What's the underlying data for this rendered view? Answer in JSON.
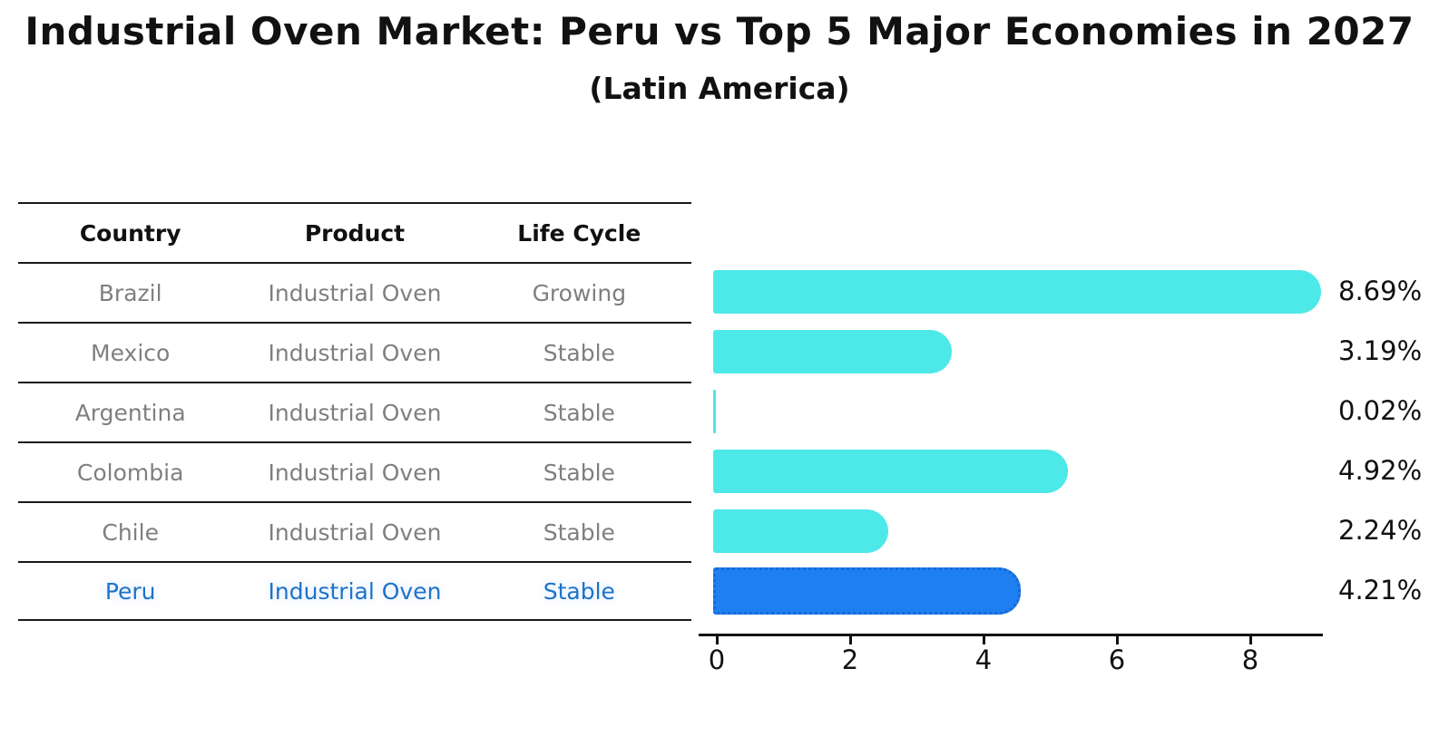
{
  "title": "Industrial Oven Market: Peru vs Top 5 Major Economies in 2027",
  "subtitle": "(Latin America)",
  "table": {
    "headers": [
      "Country",
      "Product",
      "Life Cycle"
    ],
    "rows": [
      {
        "country": "Brazil",
        "product": "Industrial Oven",
        "life_cycle": "Growing",
        "highlighted": false
      },
      {
        "country": "Mexico",
        "product": "Industrial Oven",
        "life_cycle": "Stable",
        "highlighted": false
      },
      {
        "country": "Argentina",
        "product": "Industrial Oven",
        "life_cycle": "Stable",
        "highlighted": false
      },
      {
        "country": "Colombia",
        "product": "Industrial Oven",
        "life_cycle": "Stable",
        "highlighted": false
      },
      {
        "country": "Chile",
        "product": "Industrial Oven",
        "life_cycle": "Stable",
        "highlighted": false
      },
      {
        "country": "Peru",
        "product": "Industrial Oven",
        "life_cycle": "Stable",
        "highlighted": true
      }
    ]
  },
  "chart_data": {
    "type": "bar",
    "orientation": "horizontal",
    "title": "Industrial Oven Market: Peru vs Top 5 Major Economies in 2027",
    "subtitle": "(Latin America)",
    "categories": [
      "Brazil",
      "Mexico",
      "Argentina",
      "Colombia",
      "Chile",
      "Peru"
    ],
    "values": [
      8.69,
      3.19,
      0.02,
      4.92,
      2.24,
      4.21
    ],
    "value_labels": [
      "8.69%",
      "3.19%",
      "0.02%",
      "4.92%",
      "2.24%",
      "4.21%"
    ],
    "xlabel": "",
    "ylabel": "",
    "xlim": [
      0,
      9.2
    ],
    "xticks": [
      "0",
      "2",
      "4",
      "6",
      "8"
    ],
    "grid": false,
    "legend": null,
    "highlight_index": 5,
    "colors": {
      "bar": "#4DE8E8",
      "highlight_bar": "#1E80F0",
      "highlight_border": "#1768D9",
      "highlight_text": "#1F72C8",
      "row_text": "#7F7F7F",
      "header_text": "#111111",
      "axis": "#111111",
      "value_label": "#111111"
    }
  }
}
